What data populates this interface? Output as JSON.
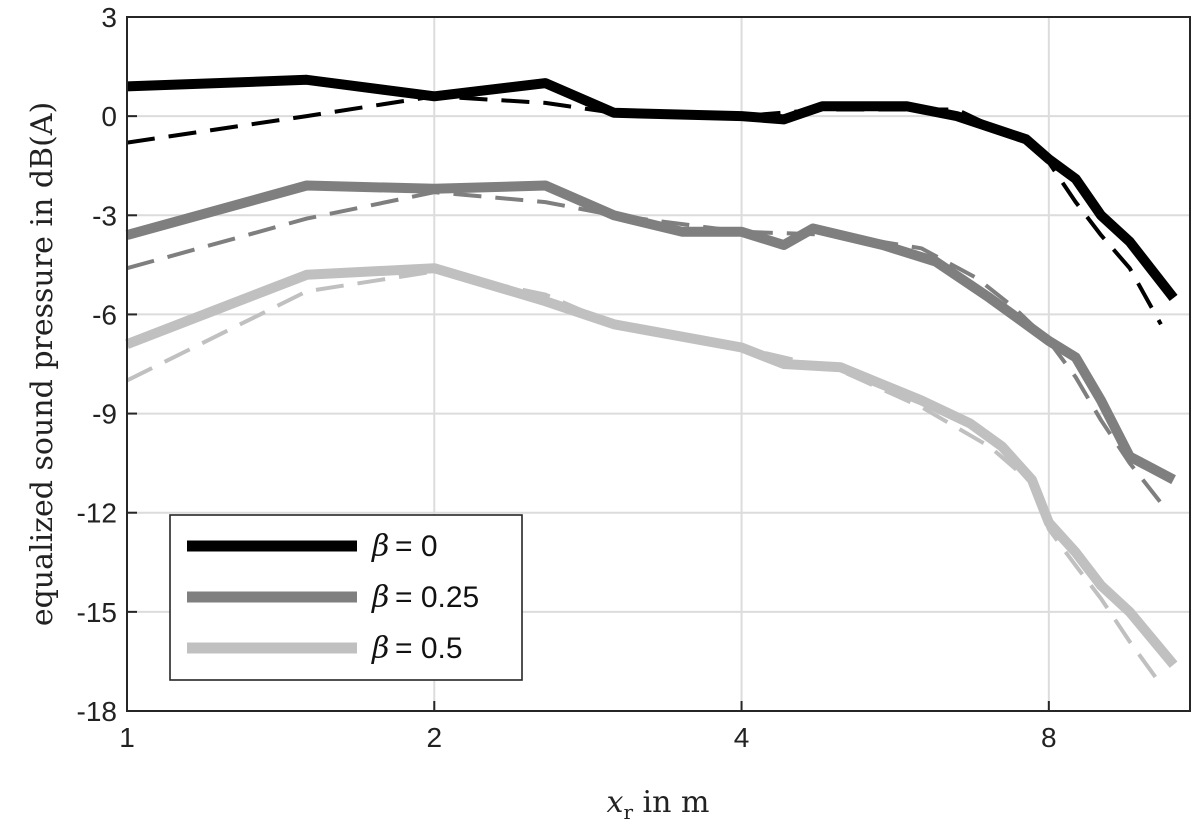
{
  "chart_data": {
    "type": "line",
    "title": "",
    "xlabel": {
      "var": "x",
      "sub": "r",
      "rest": " in m"
    },
    "ylabel": "equalized sound pressure in dB(A)",
    "xscale": "log2",
    "xlim": [
      1,
      11
    ],
    "ylim": [
      -18,
      3
    ],
    "xticks": [
      1,
      2,
      4,
      8
    ],
    "xtick_labels": [
      "1",
      "2",
      "4",
      "8"
    ],
    "yticks": [
      3,
      0,
      -3,
      -6,
      -9,
      -12,
      -15,
      -18
    ],
    "ytick_labels": [
      "3",
      "0",
      "-3",
      "-6",
      "-9",
      "-12",
      "-15",
      "-18"
    ],
    "grid": true,
    "legend_position": "bottom-left",
    "series": [
      {
        "name": "β = 0",
        "beta_symbol": "β",
        "beta_value": "= 0",
        "color": "#000000",
        "style": "solid",
        "x": [
          1.0,
          1.5,
          2.0,
          2.57,
          3.0,
          4.0,
          4.4,
          4.8,
          5.8,
          6.5,
          7.6,
          8.0,
          8.5,
          9.0,
          9.6,
          10.6
        ],
        "y": [
          0.9,
          1.1,
          0.6,
          1.0,
          0.1,
          0.0,
          -0.1,
          0.3,
          0.3,
          0.0,
          -0.7,
          -1.3,
          -1.9,
          -3.0,
          -3.8,
          -5.5
        ]
      },
      {
        "name": "",
        "color": "#000000",
        "style": "dashed",
        "x": [
          1.0,
          1.5,
          2.0,
          2.57,
          3.0,
          4.0,
          4.8,
          6.5,
          7.6,
          8.0,
          8.5,
          9.0,
          9.6,
          10.3
        ],
        "y": [
          -0.8,
          0.0,
          0.6,
          0.4,
          0.1,
          0.0,
          0.2,
          0.2,
          -0.8,
          -1.4,
          -2.6,
          -3.6,
          -4.6,
          -6.3
        ]
      },
      {
        "name": "β = 0.25",
        "beta_symbol": "β",
        "beta_value": "= 0.25",
        "color": "#7f7f7f",
        "style": "solid",
        "x": [
          1.0,
          1.5,
          2.0,
          2.57,
          3.0,
          3.5,
          4.0,
          4.4,
          4.7,
          5.5,
          6.2,
          7.0,
          7.6,
          8.0,
          8.5,
          9.0,
          9.6,
          10.6
        ],
        "y": [
          -3.6,
          -2.1,
          -2.2,
          -2.1,
          -3.0,
          -3.5,
          -3.5,
          -3.9,
          -3.4,
          -3.9,
          -4.4,
          -5.5,
          -6.3,
          -6.8,
          -7.3,
          -8.6,
          -10.3,
          -11.0
        ]
      },
      {
        "name": "",
        "color": "#7f7f7f",
        "style": "dashed",
        "x": [
          1.0,
          1.5,
          2.0,
          2.57,
          3.0,
          4.0,
          5.0,
          6.0,
          6.8,
          7.4,
          8.0,
          8.5,
          9.0,
          9.6,
          10.3
        ],
        "y": [
          -4.6,
          -3.1,
          -2.3,
          -2.6,
          -3.0,
          -3.5,
          -3.6,
          -4.0,
          -4.9,
          -5.8,
          -6.8,
          -7.9,
          -9.2,
          -10.5,
          -11.7
        ]
      },
      {
        "name": "β = 0.5",
        "beta_symbol": "β",
        "beta_value": "= 0.5",
        "color": "#c0c0c0",
        "style": "solid",
        "x": [
          1.0,
          1.5,
          2.0,
          2.57,
          3.0,
          4.0,
          4.4,
          5.0,
          6.0,
          6.7,
          7.2,
          7.7,
          8.0,
          8.5,
          9.0,
          9.6,
          10.6
        ],
        "y": [
          -6.9,
          -4.8,
          -4.6,
          -5.6,
          -6.3,
          -7.0,
          -7.5,
          -7.6,
          -8.6,
          -9.3,
          -10.0,
          -11.0,
          -12.3,
          -13.2,
          -14.2,
          -15.0,
          -16.6
        ]
      },
      {
        "name": "",
        "color": "#c0c0c0",
        "style": "dashed",
        "x": [
          1.0,
          1.5,
          2.0,
          2.57,
          3.0,
          4.0,
          5.0,
          6.0,
          7.0,
          7.7,
          8.0,
          8.5,
          9.0,
          9.6,
          10.3
        ],
        "y": [
          -8.0,
          -5.3,
          -4.7,
          -5.4,
          -6.3,
          -7.0,
          -7.7,
          -8.8,
          -10.0,
          -11.1,
          -12.5,
          -13.6,
          -14.6,
          -15.9,
          -17.2
        ]
      }
    ]
  }
}
